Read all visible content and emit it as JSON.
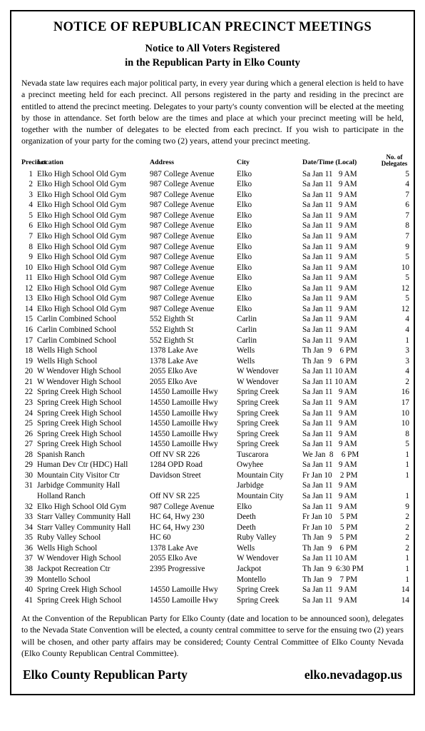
{
  "title": "NOTICE OF REPUBLICAN PRECINCT MEETINGS",
  "subtitle_line1": "Notice to All Voters Registered",
  "subtitle_line2": "in the Republican Party in Elko County",
  "intro": "Nevada state law requires each major political party, in every year during which a general election is held to have a precinct meeting held for each precinct.  All persons registered in the party and residing in the precinct are entitled to attend the precinct meeting.  Delegates to your party's county convention will be elected at the meeting by those in attendance.  Set forth below are the times and place at which your precinct meeting will be held, together with the number of delegates to be elected from each precinct.  If you wish to participate in the organization of your party for the coming two (2) years, attend your precinct meeting.",
  "headers": {
    "precinct": "Precinct",
    "location": "Location",
    "address": "Address",
    "city": "City",
    "date": "Date/Time (Local)",
    "delegates_top": "No. of",
    "delegates_bot": "Delegates"
  },
  "rows": [
    {
      "p": "1",
      "loc": "Elko High School Old Gym",
      "addr": "987 College Avenue",
      "city": "Elko",
      "date": "Sa Jan 11   9 AM",
      "del": "5"
    },
    {
      "p": "2",
      "loc": "Elko High School Old Gym",
      "addr": "987 College Avenue",
      "city": "Elko",
      "date": "Sa Jan 11   9 AM",
      "del": "4"
    },
    {
      "p": "3",
      "loc": "Elko High School Old Gym",
      "addr": "987 College Avenue",
      "city": "Elko",
      "date": "Sa Jan 11   9 AM",
      "del": "7"
    },
    {
      "p": "4",
      "loc": "Elko High School Old Gym",
      "addr": "987 College Avenue",
      "city": "Elko",
      "date": "Sa Jan 11   9 AM",
      "del": "6"
    },
    {
      "p": "5",
      "loc": "Elko High School Old Gym",
      "addr": "987 College Avenue",
      "city": "Elko",
      "date": "Sa Jan 11   9 AM",
      "del": "7"
    },
    {
      "p": "6",
      "loc": "Elko High School Old Gym",
      "addr": "987 College Avenue",
      "city": "Elko",
      "date": "Sa Jan 11   9 AM",
      "del": "8"
    },
    {
      "p": "7",
      "loc": "Elko High School Old Gym",
      "addr": "987 College Avenue",
      "city": "Elko",
      "date": "Sa Jan 11   9 AM",
      "del": "7"
    },
    {
      "p": "8",
      "loc": "Elko High School Old Gym",
      "addr": "987 College Avenue",
      "city": "Elko",
      "date": "Sa Jan 11   9 AM",
      "del": "9"
    },
    {
      "p": "9",
      "loc": "Elko High School Old Gym",
      "addr": "987 College Avenue",
      "city": "Elko",
      "date": "Sa Jan 11   9 AM",
      "del": "5"
    },
    {
      "p": "10",
      "loc": "Elko High School Old Gym",
      "addr": "987 College Avenue",
      "city": "Elko",
      "date": "Sa Jan 11   9 AM",
      "del": "10"
    },
    {
      "p": "11",
      "loc": "Elko High School Old Gym",
      "addr": "987 College Avenue",
      "city": "Elko",
      "date": "Sa Jan 11   9 AM",
      "del": "5"
    },
    {
      "p": "12",
      "loc": "Elko High School Old Gym",
      "addr": "987 College Avenue",
      "city": "Elko",
      "date": "Sa Jan 11   9 AM",
      "del": "12"
    },
    {
      "p": "13",
      "loc": "Elko High School Old Gym",
      "addr": "987 College Avenue",
      "city": "Elko",
      "date": "Sa Jan 11   9 AM",
      "del": "5"
    },
    {
      "p": "14",
      "loc": "Elko High School Old Gym",
      "addr": "987 College Avenue",
      "city": "Elko",
      "date": "Sa Jan 11   9 AM",
      "del": "12"
    },
    {
      "p": "15",
      "loc": "Carlin Combined School",
      "addr": "552 Eighth St",
      "city": "Carlin",
      "date": "Sa Jan 11   9 AM",
      "del": "4"
    },
    {
      "p": "16",
      "loc": "Carlin Combined School",
      "addr": "552 Eighth St",
      "city": "Carlin",
      "date": "Sa Jan 11   9 AM",
      "del": "4"
    },
    {
      "p": "17",
      "loc": "Carlin Combined School",
      "addr": "552 Eighth St",
      "city": "Carlin",
      "date": "Sa Jan 11   9 AM",
      "del": "1"
    },
    {
      "p": "18",
      "loc": "Wells High School",
      "addr": "1378 Lake Ave",
      "city": "Wells",
      "date": "Th Jan  9    6 PM",
      "del": "3"
    },
    {
      "p": "19",
      "loc": "Wells High School",
      "addr": "1378 Lake Ave",
      "city": "Wells",
      "date": "Th Jan  9    6 PM",
      "del": "3"
    },
    {
      "p": "20",
      "loc": "W Wendover High School",
      "addr": "2055 Elko Ave",
      "city": "W Wendover",
      "date": "Sa Jan 11 10 AM",
      "del": "4"
    },
    {
      "p": "21",
      "loc": "W Wendover High School",
      "addr": "2055 Elko Ave",
      "city": "W Wendover",
      "date": "Sa Jan 11 10 AM",
      "del": "2"
    },
    {
      "p": "22",
      "loc": "Spring Creek High School",
      "addr": "14550 Lamoille Hwy",
      "city": "Spring Creek",
      "date": "Sa Jan 11   9 AM",
      "del": "16"
    },
    {
      "p": "23",
      "loc": "Spring Creek High School",
      "addr": "14550 Lamoille Hwy",
      "city": "Spring Creek",
      "date": "Sa Jan 11   9 AM",
      "del": "17"
    },
    {
      "p": "24",
      "loc": "Spring Creek High School",
      "addr": "14550 Lamoille Hwy",
      "city": "Spring Creek",
      "date": "Sa Jan 11   9 AM",
      "del": "10"
    },
    {
      "p": "25",
      "loc": "Spring Creek High School",
      "addr": "14550 Lamoille Hwy",
      "city": "Spring Creek",
      "date": "Sa Jan 11   9 AM",
      "del": "10"
    },
    {
      "p": "26",
      "loc": "Spring Creek High School",
      "addr": "14550 Lamoille Hwy",
      "city": "Spring Creek",
      "date": "Sa Jan 11   9 AM",
      "del": "8"
    },
    {
      "p": "27",
      "loc": "Spring Creek High School",
      "addr": "14550 Lamoille Hwy",
      "city": "Spring Creek",
      "date": "Sa Jan 11   9 AM",
      "del": "5"
    },
    {
      "p": "28",
      "loc": "Spanish Ranch",
      "addr": "Off NV SR 226",
      "city": "Tuscarora",
      "date": "We Jan  8    6 PM",
      "del": "1"
    },
    {
      "p": "29",
      "loc": "Human Dev Ctr (HDC) Hall",
      "addr": "1284 OPD Road",
      "city": "Owyhee",
      "date": "Sa Jan 11   9 AM",
      "del": "1"
    },
    {
      "p": "30",
      "loc": "Mountain City Visitor Ctr",
      "addr": "Davidson Street",
      "city": "Mountain City",
      "date": "Fr Jan 10    2 PM",
      "del": "1"
    },
    {
      "p": "31",
      "loc": "Jarbidge Community Hall",
      "addr": "",
      "city": "Jarbidge",
      "date": "Sa Jan 11   9 AM",
      "del": ""
    },
    {
      "p": "",
      "loc": "Holland Ranch",
      "addr": "Off NV SR 225",
      "city": "Mountain City",
      "date": "Sa Jan 11   9 AM",
      "del": "1"
    },
    {
      "p": "32",
      "loc": "Elko High School Old Gym",
      "addr": "987 College Avenue",
      "city": "Elko",
      "date": "Sa Jan 11   9 AM",
      "del": "9"
    },
    {
      "p": "33",
      "loc": "Starr Valley Community Hall",
      "addr": "HC 64, Hwy 230",
      "city": "Deeth",
      "date": "Fr Jan 10    5 PM",
      "del": "2"
    },
    {
      "p": "34",
      "loc": "Starr Valley Community Hall",
      "addr": "HC 64, Hwy 230",
      "city": "Deeth",
      "date": "Fr Jan 10    5 PM",
      "del": "2"
    },
    {
      "p": "35",
      "loc": "Ruby Valley School",
      "addr": "HC 60",
      "city": "Ruby Valley",
      "date": "Th Jan  9    5 PM",
      "del": "2"
    },
    {
      "p": "36",
      "loc": "Wells High School",
      "addr": "1378 Lake Ave",
      "city": "Wells",
      "date": "Th Jan  9    6 PM",
      "del": "2"
    },
    {
      "p": "37",
      "loc": "W Wendover High School",
      "addr": "2055 Elko Ave",
      "city": "W Wendover",
      "date": "Sa Jan 11 10 AM",
      "del": "1"
    },
    {
      "p": "38",
      "loc": "Jackpot Recreation Ctr",
      "addr": "2395 Progressive",
      "city": "Jackpot",
      "date": "Th Jan  9  6:30 PM",
      "del": "1"
    },
    {
      "p": "39",
      "loc": "Montello School",
      "addr": "",
      "city": "Montello",
      "date": "Th Jan  9    7 PM",
      "del": "1"
    },
    {
      "p": "40",
      "loc": "Spring Creek High School",
      "addr": "14550 Lamoille Hwy",
      "city": "Spring Creek",
      "date": "Sa Jan 11   9 AM",
      "del": "14"
    },
    {
      "p": "41",
      "loc": "Spring Creek High School",
      "addr": "14550 Lamoille Hwy",
      "city": "Spring Creek",
      "date": "Sa Jan 11   9 AM",
      "del": "14"
    }
  ],
  "outro": "At the Convention of the Republican Party for Elko County (date and location to be announced soon), delegates to the Nevada State Convention will be elected, a county central committee to serve for the ensuing two (2) years will be chosen, and other party affairs may be considered; County Central Committee of Elko County Nevada (Elko County Republican Central Committee).",
  "footer_left": "Elko County Republican Party",
  "footer_right": "elko.nevadagop.us"
}
